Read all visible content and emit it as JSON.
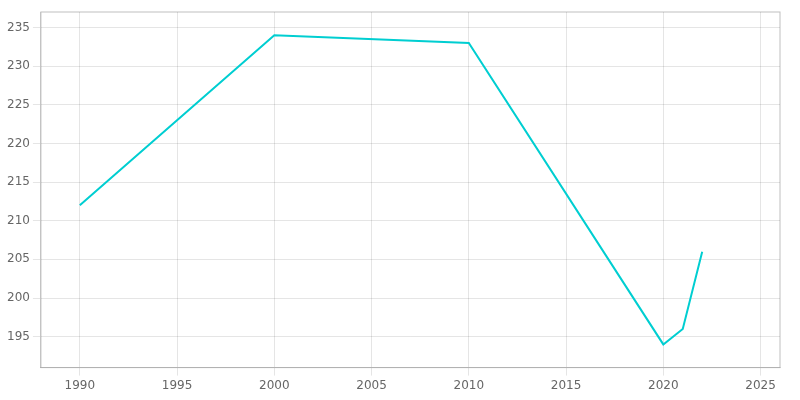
{
  "chart_data": {
    "type": "line",
    "x": [
      1990,
      2000,
      2010,
      2020,
      2021,
      2022
    ],
    "values": [
      212,
      234,
      233,
      194,
      196,
      206
    ],
    "color": "#00CED1",
    "xlim": [
      1988,
      2026
    ],
    "ylim": [
      191,
      237
    ],
    "xticks": [
      1990,
      1995,
      2000,
      2005,
      2010,
      2015,
      2020,
      2025
    ],
    "yticks": [
      195,
      200,
      205,
      210,
      215,
      220,
      225,
      230,
      235
    ],
    "grid": true
  }
}
